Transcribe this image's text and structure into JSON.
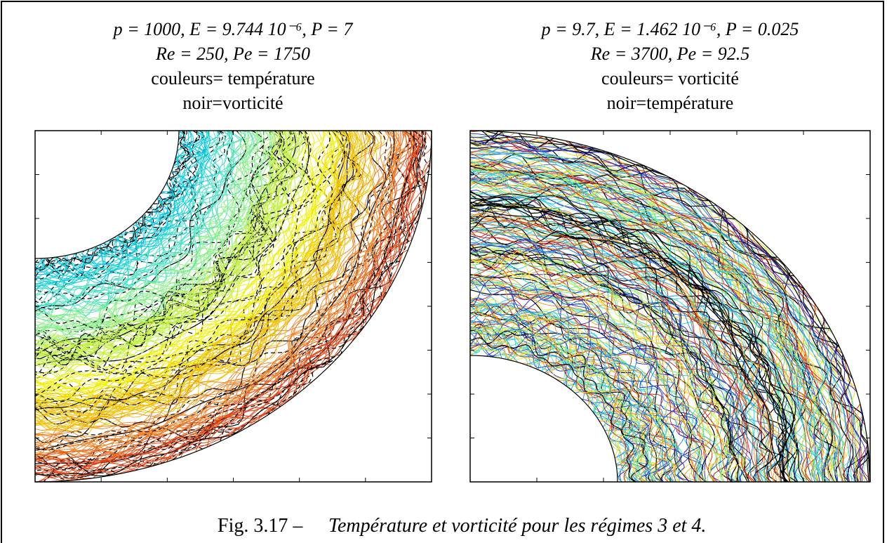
{
  "panels": [
    {
      "lines": [
        "p = 1000, E = 9.744 10⁻⁶, P = 7",
        "Re = 250, Pe = 1750",
        "couleurs= température",
        "noir=vorticité"
      ]
    },
    {
      "lines": [
        "p = 9.7, E = 1.462 10⁻⁶, P = 0.025",
        "Re = 3700, Pe = 92.5",
        "couleurs= vorticité",
        "noir=température"
      ]
    }
  ],
  "caption": {
    "label": "Fig. 3.17 –",
    "text": "Température et vorticité pour les régimes 3 et 4."
  }
}
